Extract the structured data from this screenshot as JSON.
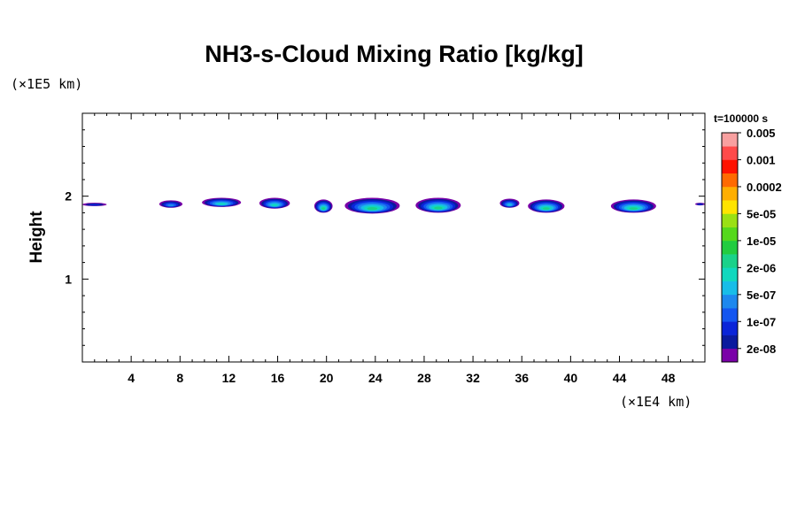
{
  "chart_data": {
    "type": "heatmap",
    "title": "NH3-s-Cloud Mixing Ratio [kg/kg]",
    "ylabel": "Height",
    "xlabel": "",
    "x_unit": "(×1E4 km)",
    "y_unit": "(×1E5 km)",
    "time_label": "t=100000 s",
    "xlim": [
      0,
      51
    ],
    "ylim": [
      0,
      3
    ],
    "x_ticks": [
      4,
      8,
      12,
      16,
      20,
      24,
      28,
      32,
      36,
      40,
      44,
      48
    ],
    "y_ticks": [
      1,
      2
    ],
    "colorbar": {
      "colors": [
        "#7a00a8",
        "#0a1a9e",
        "#0a24d8",
        "#1456f0",
        "#1e88ee",
        "#18bde8",
        "#10d8be",
        "#1ad28a",
        "#22cc40",
        "#55d81c",
        "#9ae014",
        "#ffe400",
        "#ffae00",
        "#ff6a00",
        "#ff1200",
        "#ff4a4a",
        "#f8a0a0"
      ],
      "labels": [
        "2e-08",
        "1e-07",
        "5e-07",
        "2e-06",
        "1e-05",
        "5e-05",
        "0.0002",
        "0.001",
        "0.005"
      ]
    },
    "cloud_patches": [
      {
        "x": [
          0.0,
          2.0
        ],
        "y": [
          1.88,
          1.92
        ],
        "peak_level": 2
      },
      {
        "x": [
          6.3,
          8.2
        ],
        "y": [
          1.86,
          1.95
        ],
        "peak_level": 4
      },
      {
        "x": [
          9.8,
          13.0
        ],
        "y": [
          1.87,
          1.98
        ],
        "peak_level": 6
      },
      {
        "x": [
          14.5,
          17.0
        ],
        "y": [
          1.85,
          1.98
        ],
        "peak_level": 6
      },
      {
        "x": [
          19.0,
          20.5
        ],
        "y": [
          1.8,
          1.96
        ],
        "peak_level": 7
      },
      {
        "x": [
          21.5,
          26.0
        ],
        "y": [
          1.79,
          1.98
        ],
        "peak_level": 7
      },
      {
        "x": [
          27.3,
          31.0
        ],
        "y": [
          1.8,
          1.98
        ],
        "peak_level": 7
      },
      {
        "x": [
          34.2,
          35.8
        ],
        "y": [
          1.86,
          1.97
        ],
        "peak_level": 5
      },
      {
        "x": [
          36.5,
          39.5
        ],
        "y": [
          1.8,
          1.96
        ],
        "peak_level": 7
      },
      {
        "x": [
          43.3,
          47.0
        ],
        "y": [
          1.8,
          1.96
        ],
        "peak_level": 7
      },
      {
        "x": [
          50.2,
          51.0
        ],
        "y": [
          1.89,
          1.92
        ],
        "peak_level": 2
      }
    ]
  }
}
